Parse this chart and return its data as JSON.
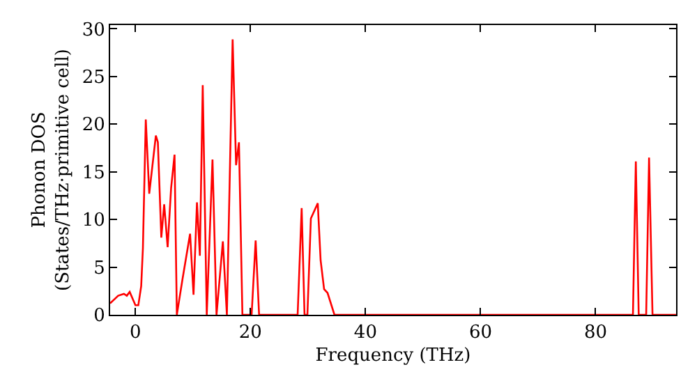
{
  "chart_data": {
    "type": "line",
    "xlabel": "Frequency (THz)",
    "ylabel": "Phonon DOS\n(States/THz·primitive cell)",
    "xlim": [
      -4.4,
      94
    ],
    "ylim": [
      0,
      30.4
    ],
    "xticks": [
      0,
      20,
      40,
      60,
      80
    ],
    "yticks": [
      0,
      5,
      10,
      15,
      20,
      25,
      30
    ],
    "legend": false,
    "series": [
      {
        "color": "#ff0000",
        "x": [
          -4.4,
          -3,
          -2,
          -1.5,
          -1,
          0,
          0.5,
          1,
          1.3,
          1.8,
          2.4,
          3.55,
          3.9,
          4.5,
          5.0,
          5.6,
          6.2,
          6.8,
          7.2,
          8.2,
          9.5,
          10.1,
          10.7,
          11.2,
          11.7,
          12.4,
          13.4,
          14.1,
          15.2,
          15.9,
          16.9,
          17.5,
          18.0,
          18.6,
          20.2,
          20.9,
          21.5,
          28.2,
          28.9,
          29.4,
          29.9,
          30.5,
          31.7,
          32.2,
          32.8,
          33.4,
          34.6,
          86.5,
          87.0,
          87.5,
          88.8,
          89.3,
          89.9,
          94
        ],
        "values": [
          1.2,
          2,
          2.2,
          2,
          2.4,
          1,
          1,
          3,
          7,
          20.5,
          12.7,
          18.8,
          18.1,
          8.1,
          11.6,
          7.1,
          13.3,
          16.8,
          0,
          3.8,
          8.5,
          2.1,
          11.8,
          6.2,
          24.1,
          0,
          16.3,
          0,
          7.7,
          0,
          28.9,
          15.7,
          18.1,
          0,
          0,
          7.8,
          0,
          0,
          11.2,
          0,
          0,
          10.1,
          11.7,
          5.7,
          2.7,
          2.3,
          0,
          0,
          16.1,
          0,
          0,
          16.5,
          0,
          0
        ]
      }
    ]
  }
}
